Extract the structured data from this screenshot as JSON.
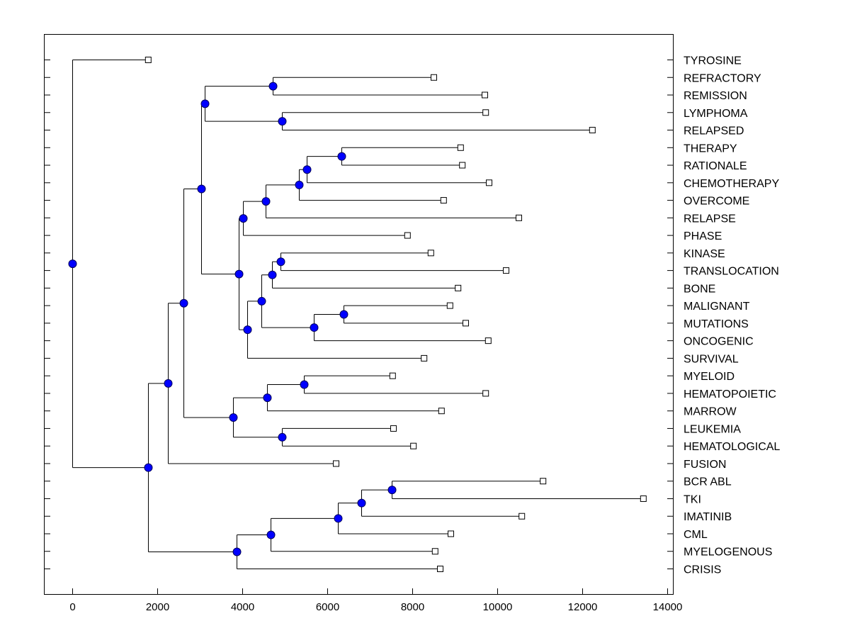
{
  "chart_data": {
    "type": "dendrogram",
    "title": "",
    "xlabel": "",
    "ylabel": "",
    "xlim": [
      -650,
      14150
    ],
    "xticks": [
      0,
      2000,
      4000,
      6000,
      8000,
      10000,
      12000,
      14000
    ],
    "grid": false,
    "colors": {
      "node": "#0000ff",
      "node_edge": "#00005a",
      "line": "#000000",
      "leaf_fill": "#ffffff"
    },
    "leaf_order": [
      "TYROSINE",
      "REFRACTORY",
      "REMISSION",
      "LYMPHOMA",
      "RELAPSED",
      "THERAPY",
      "RATIONALE",
      "CHEMOTHERAPY",
      "OVERCOME",
      "RELAPSE",
      "PHASE",
      "KINASE",
      "TRANSLOCATION",
      "BONE",
      "MALIGNANT",
      "MUTATIONS",
      "ONCOGENIC",
      "SURVIVAL",
      "MYELOID",
      "HEMATOPOIETIC",
      "MARROW",
      "LEUKEMIA",
      "HEMATOLOGICAL",
      "FUSION",
      "BCR ABL",
      "TKI",
      "IMATINIB",
      "CML",
      "MYELOGENOUS",
      "CRISIS"
    ],
    "tree": {
      "h": 0,
      "children": [
        {
          "label": "TYROSINE",
          "h": 1780
        },
        {
          "h": 1783,
          "children": [
            {
              "h": 2250,
              "children": [
                {
                  "h": 2617,
                  "children": [
                    {
                      "h": 3033,
                      "children": [
                        {
                          "h": 3117,
                          "children": [
                            {
                              "h": 4717,
                              "children": [
                                {
                                  "label": "REFRACTORY",
                                  "h": 8500
                                },
                                {
                                  "label": "REMISSION",
                                  "h": 9700
                                }
                              ]
                            },
                            {
                              "h": 4933,
                              "children": [
                                {
                                  "label": "LYMPHOMA",
                                  "h": 9720
                                },
                                {
                                  "label": "RELAPSED",
                                  "h": 12230
                                }
                              ]
                            }
                          ]
                        },
                        {
                          "h": 3917,
                          "children": [
                            {
                              "h": 4017,
                              "children": [
                                {
                                  "h": 4550,
                                  "children": [
                                    {
                                      "h": 5333,
                                      "children": [
                                        {
                                          "h": 5517,
                                          "children": [
                                            {
                                              "h": 6333,
                                              "children": [
                                                {
                                                  "label": "THERAPY",
                                                  "h": 9130
                                                },
                                                {
                                                  "label": "RATIONALE",
                                                  "h": 9170
                                                }
                                              ]
                                            },
                                            {
                                              "label": "CHEMOTHERAPY",
                                              "h": 9800
                                            }
                                          ]
                                        },
                                        {
                                          "label": "OVERCOME",
                                          "h": 8730
                                        }
                                      ]
                                    },
                                    {
                                      "label": "RELAPSE",
                                      "h": 10500
                                    }
                                  ]
                                },
                                {
                                  "label": "PHASE",
                                  "h": 7880
                                }
                              ]
                            },
                            {
                              "h": 4117,
                              "children": [
                                {
                                  "h": 4450,
                                  "children": [
                                    {
                                      "h": 4700,
                                      "children": [
                                        {
                                          "h": 4900,
                                          "children": [
                                            {
                                              "label": "KINASE",
                                              "h": 8430
                                            },
                                            {
                                              "label": "TRANSLOCATION",
                                              "h": 10200
                                            }
                                          ]
                                        },
                                        {
                                          "label": "BONE",
                                          "h": 9070
                                        }
                                      ]
                                    },
                                    {
                                      "h": 5683,
                                      "children": [
                                        {
                                          "h": 6383,
                                          "children": [
                                            {
                                              "label": "MALIGNANT",
                                              "h": 8880
                                            },
                                            {
                                              "label": "MUTATIONS",
                                              "h": 9250
                                            }
                                          ]
                                        },
                                        {
                                          "label": "ONCOGENIC",
                                          "h": 9780
                                        }
                                      ]
                                    }
                                  ]
                                },
                                {
                                  "label": "SURVIVAL",
                                  "h": 8270
                                }
                              ]
                            }
                          ]
                        }
                      ]
                    },
                    {
                      "h": 3783,
                      "children": [
                        {
                          "h": 4583,
                          "children": [
                            {
                              "h": 5450,
                              "children": [
                                {
                                  "label": "MYELOID",
                                  "h": 7530
                                },
                                {
                                  "label": "HEMATOPOIETIC",
                                  "h": 9720
                                }
                              ]
                            },
                            {
                              "label": "MARROW",
                              "h": 8680
                            }
                          ]
                        },
                        {
                          "h": 4933,
                          "children": [
                            {
                              "label": "LEUKEMIA",
                              "h": 7550
                            },
                            {
                              "label": "HEMATOLOGICAL",
                              "h": 8020
                            }
                          ]
                        }
                      ]
                    }
                  ]
                },
                {
                  "label": "FUSION",
                  "h": 6200
                }
              ]
            },
            {
              "h": 3867,
              "children": [
                {
                  "h": 4667,
                  "children": [
                    {
                      "h": 6250,
                      "children": [
                        {
                          "h": 6800,
                          "children": [
                            {
                              "h": 7517,
                              "children": [
                                {
                                  "label": "BCR ABL",
                                  "h": 11070
                                },
                                {
                                  "label": "TKI",
                                  "h": 13430
                                }
                              ]
                            },
                            {
                              "label": "IMATINIB",
                              "h": 10570
                            }
                          ]
                        },
                        {
                          "label": "CML",
                          "h": 8900
                        }
                      ]
                    },
                    {
                      "label": "MYELOGENOUS",
                      "h": 8530
                    }
                  ]
                },
                {
                  "label": "CRISIS",
                  "h": 8650
                }
              ]
            }
          ]
        }
      ]
    }
  }
}
